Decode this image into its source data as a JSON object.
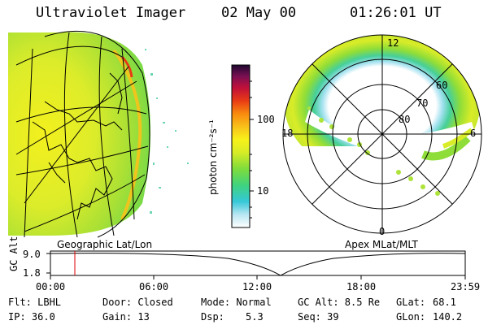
{
  "header": {
    "instrument": "Ultraviolet Imager",
    "date": "02 May 00",
    "time": "01:26:01 UT"
  },
  "colorbar": {
    "label": "photon cm⁻²s⁻¹",
    "ticks": [
      "100",
      "10"
    ],
    "scale": "log",
    "colors": [
      "#ffffff",
      "#9fe0f0",
      "#2ec7d6",
      "#3bd38a",
      "#7edc3c",
      "#d8ee28",
      "#f7f31a",
      "#f9c21a",
      "#f98a0e",
      "#e63a14",
      "#c0103a",
      "#7a0f52",
      "#2a0a3a"
    ]
  },
  "left_panel": {
    "label": "Geographic Lat/Lon"
  },
  "right_panel": {
    "label": "Apex MLat/MLT",
    "mlt_labels": [
      "12",
      "18",
      "6",
      "0"
    ],
    "lat_labels": [
      "60",
      "70",
      "80"
    ]
  },
  "timeline": {
    "ylabel": "GC Alt",
    "yticks": [
      "9.0",
      "1.8"
    ],
    "xticks": [
      "00:00",
      "06:00",
      "12:00",
      "18:00",
      "23:59"
    ],
    "marker_time": "01:26",
    "marker_color": "#dd0000"
  },
  "footer": {
    "flt": "Flt: LBHL",
    "ip": "IP: 36.0",
    "door": "Door: Closed",
    "gain": "Gain: 13",
    "mode": "Mode: Normal",
    "dsp_label": "Dsp:",
    "dsp_value": "5.3",
    "gcalt": "GC Alt: 8.5 Re",
    "seq": "Seq: 39",
    "glat_label": "GLat:",
    "glat_value": "68.1",
    "glon_label": "GLon:",
    "glon_value": "140.2"
  }
}
